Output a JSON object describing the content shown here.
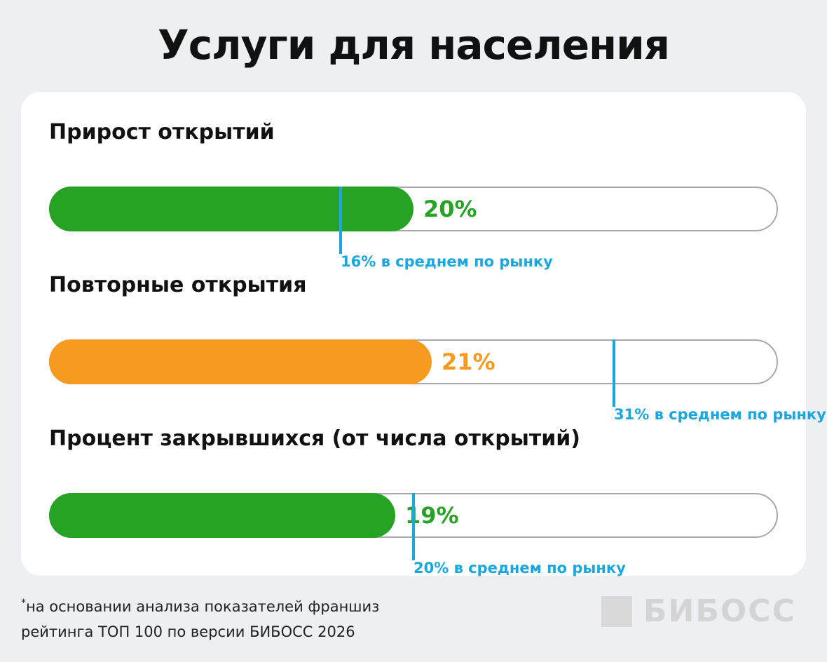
{
  "title": "Услуги для населения",
  "footnote": {
    "marker": "*",
    "line1": "на основании анализа показателей франшиз",
    "line2": "рейтинга ТОП 100 по версии БИБОСС 2026"
  },
  "logo": {
    "text": "БИБОСС",
    "icon": "square-logo-icon"
  },
  "colors": {
    "green": "#26a325",
    "orange": "#f89a20",
    "average": "#1aa7e0",
    "track_border": "#a8a8a8"
  },
  "chart_data": {
    "type": "bar",
    "orientation": "horizontal",
    "unit": "%",
    "axis_range": [
      0,
      40
    ],
    "categories": [
      "Прирост открытий",
      "Повторные открытия",
      "Процент закрывшихся (от числа открытий)"
    ],
    "series": [
      {
        "values": [
          20,
          21,
          19
        ],
        "colors": [
          "#26a325",
          "#f89a20",
          "#26a325"
        ],
        "labels": [
          "20%",
          "21%",
          "19%"
        ]
      }
    ],
    "market_average": {
      "values": [
        16,
        31,
        20
      ],
      "labels": [
        "16% в среднем по рынку",
        "31% в среднем по рынку",
        "20% в среднем по рынку"
      ]
    }
  }
}
